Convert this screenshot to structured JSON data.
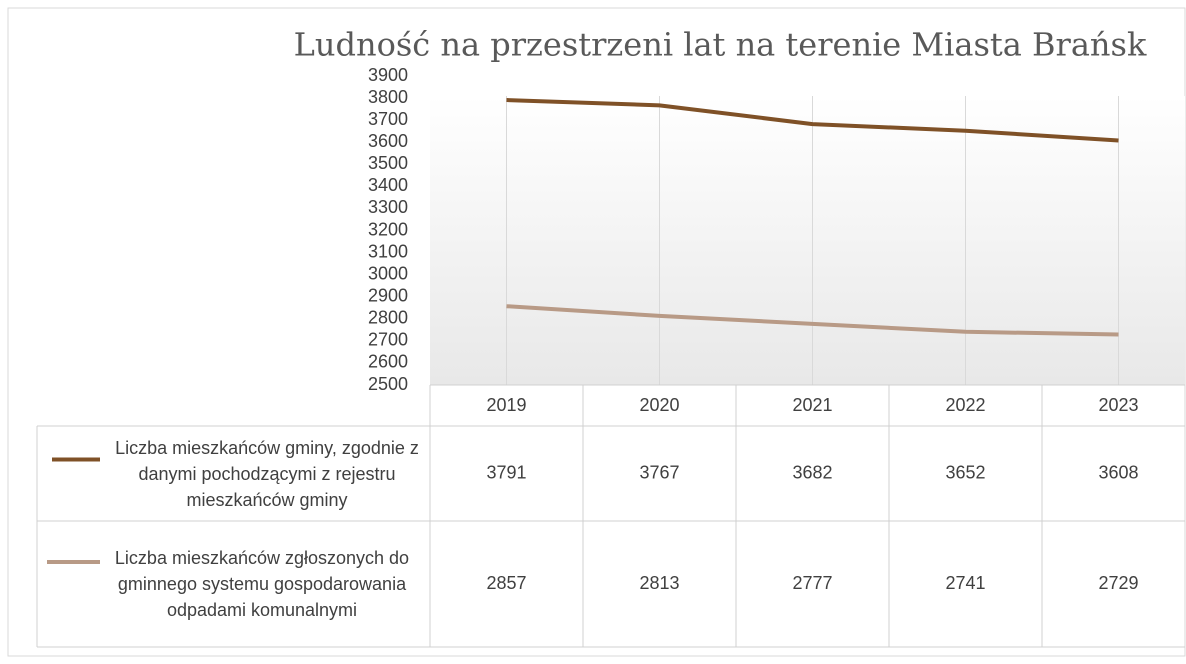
{
  "chart_data": {
    "type": "line",
    "title": "Ludność na przestrzeni lat na terenie Miasta Brańsk",
    "categories": [
      "2019",
      "2020",
      "2021",
      "2022",
      "2023"
    ],
    "series": [
      {
        "name": "Liczba mieszkańców gminy, zgodnie z danymi pochodzącymi z rejestru mieszkańców gminy",
        "color": "#7f5127",
        "values": [
          3791,
          3767,
          3682,
          3652,
          3608
        ]
      },
      {
        "name": "Liczba mieszkańców zgłoszonych do gminnego systemu gospodarowania odpadami komunalnymi",
        "color": "#b89a86",
        "values": [
          2857,
          2813,
          2777,
          2741,
          2729
        ]
      }
    ],
    "ylim": [
      2500,
      3900
    ],
    "yticks": [
      2500,
      2600,
      2700,
      2800,
      2900,
      3000,
      3100,
      3200,
      3300,
      3400,
      3500,
      3600,
      3700,
      3800,
      3900
    ]
  }
}
